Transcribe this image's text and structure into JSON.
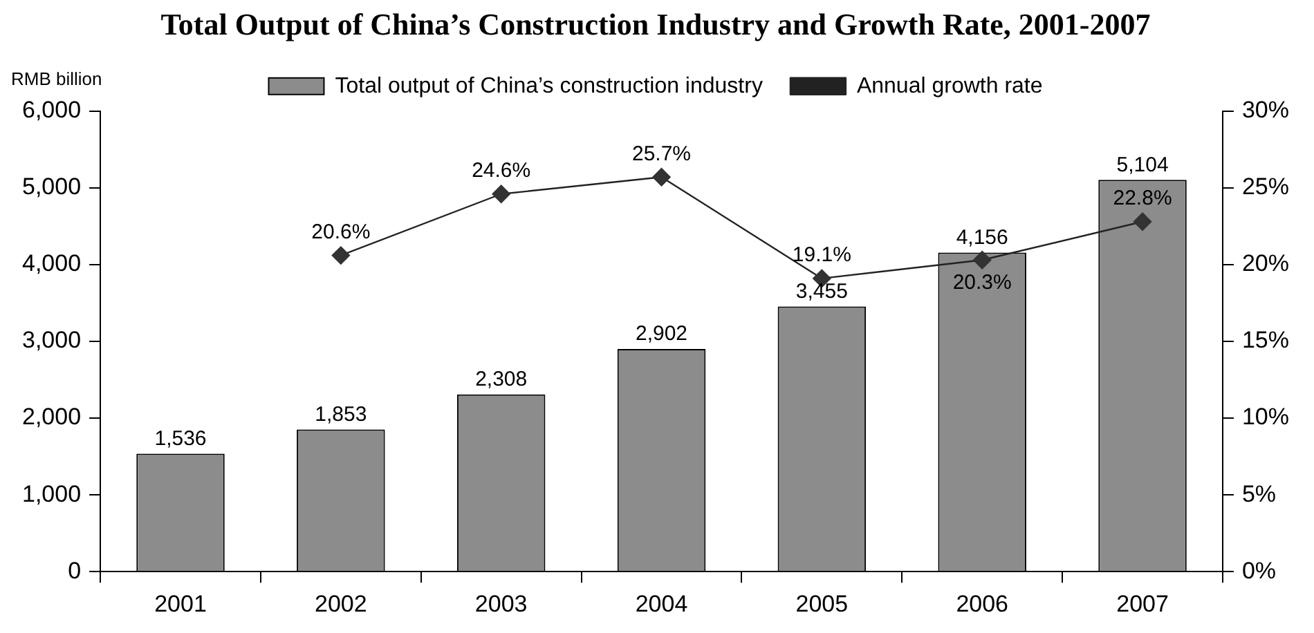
{
  "chart_data": {
    "type": "bar",
    "title": "Total Output of China’s Construction Industry and Growth Rate, 2001-2007",
    "ylabel": "RMB billion",
    "categories": [
      "2001",
      "2002",
      "2003",
      "2004",
      "2005",
      "2006",
      "2007"
    ],
    "series": [
      {
        "name": "Total output of China’s construction industry",
        "color": "#8c8c8c",
        "values": [
          1536,
          1853,
          2308,
          2902,
          3455,
          4156,
          5104
        ],
        "value_labels": [
          "1,536",
          "1,853",
          "2,308",
          "2,902",
          "3,455",
          "4,156",
          "5,104"
        ]
      },
      {
        "name": "Annual growth rate",
        "type": "line",
        "axis": "y2",
        "color": "#222222",
        "marker": "diamond",
        "line_style": "solid",
        "values": [
          null,
          20.6,
          24.6,
          25.7,
          19.1,
          20.3,
          22.8
        ],
        "value_labels": [
          null,
          "20.6%",
          "24.6%",
          "25.7%",
          "19.1%",
          "20.3%",
          "22.8%"
        ]
      }
    ],
    "ylim": [
      0,
      6000
    ],
    "yticks": [
      {
        "value": 0,
        "label": "0"
      },
      {
        "value": 1000,
        "label": "1,000"
      },
      {
        "value": 2000,
        "label": "2,000"
      },
      {
        "value": 3000,
        "label": "3,000"
      },
      {
        "value": 4000,
        "label": "4,000"
      },
      {
        "value": 5000,
        "label": "5,000"
      },
      {
        "value": 6000,
        "label": "6,000"
      }
    ],
    "y2lim": [
      0,
      30
    ],
    "y2ticks": [
      {
        "value": 0,
        "label": "0%"
      },
      {
        "value": 5,
        "label": "5%"
      },
      {
        "value": 10,
        "label": "10%"
      },
      {
        "value": 15,
        "label": "15%"
      },
      {
        "value": 20,
        "label": "20%"
      },
      {
        "value": 25,
        "label": "25%"
      },
      {
        "value": 30,
        "label": "30%"
      }
    ],
    "grid": false,
    "legend": "top"
  }
}
